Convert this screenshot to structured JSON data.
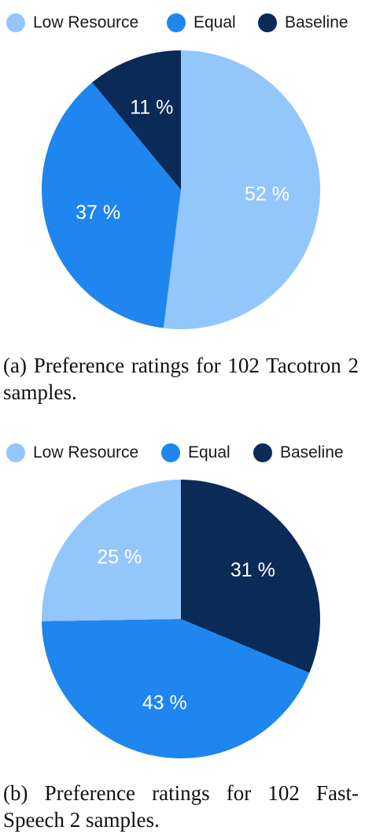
{
  "colors": {
    "low_resource": "#93c6fb",
    "equal": "#1e86ee",
    "baseline": "#0a2a57"
  },
  "chart_data": [
    {
      "type": "pie",
      "legend": [
        "Low Resource",
        "Equal",
        "Baseline"
      ],
      "slices": [
        {
          "name": "Low Resource",
          "value": 52,
          "label": "52 %"
        },
        {
          "name": "Equal",
          "value": 37,
          "label": "37 %"
        },
        {
          "name": "Baseline",
          "value": 11,
          "label": "11 %"
        }
      ],
      "caption": "(a) Preference ratings for 102 Tacotron 2 samples."
    },
    {
      "type": "pie",
      "legend": [
        "Low Resource",
        "Equal",
        "Baseline"
      ],
      "slices": [
        {
          "name": "Baseline",
          "value": 31,
          "label": "31 %"
        },
        {
          "name": "Equal",
          "value": 43,
          "label": "43 %"
        },
        {
          "name": "Low Resource",
          "value": 25,
          "label": "25 %"
        }
      ],
      "caption": "(b) Preference ratings for 102 Fast-Speech 2 samples."
    }
  ]
}
